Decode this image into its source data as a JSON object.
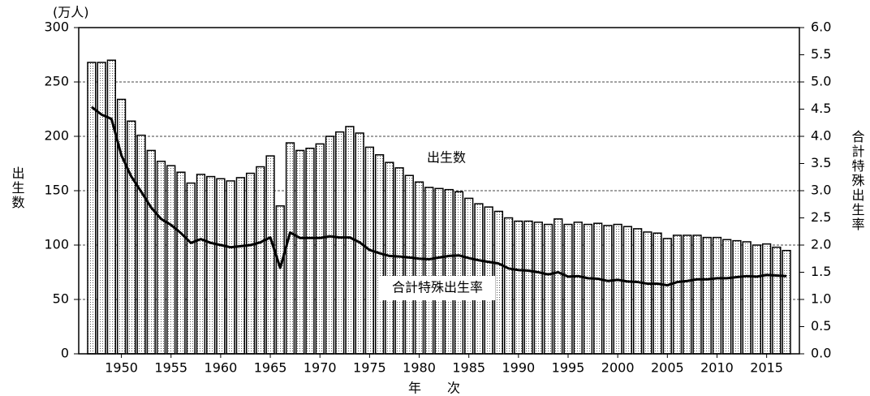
{
  "chart_data": {
    "type": "bar_line",
    "y_unit": "(万人)",
    "y_label": "出生数",
    "y2_label": "合計特殊出生率",
    "x_label": "年　　次",
    "x": [
      1947,
      1948,
      1949,
      1950,
      1951,
      1952,
      1953,
      1954,
      1955,
      1956,
      1957,
      1958,
      1959,
      1960,
      1961,
      1962,
      1963,
      1964,
      1965,
      1966,
      1967,
      1968,
      1969,
      1970,
      1971,
      1972,
      1973,
      1974,
      1975,
      1976,
      1977,
      1978,
      1979,
      1980,
      1981,
      1982,
      1983,
      1984,
      1985,
      1986,
      1987,
      1988,
      1989,
      1990,
      1991,
      1992,
      1993,
      1994,
      1995,
      1996,
      1997,
      1998,
      1999,
      2000,
      2001,
      2002,
      2003,
      2004,
      2005,
      2006,
      2007,
      2008,
      2009,
      2010,
      2011,
      2012,
      2013,
      2014,
      2015,
      2016,
      2017
    ],
    "series": [
      {
        "name": "出生数",
        "color": "#000000",
        "values": [
          268,
          268,
          270,
          234,
          214,
          201,
          187,
          177,
          173,
          167,
          157,
          165,
          163,
          161,
          159,
          162,
          166,
          172,
          182,
          136,
          194,
          187,
          189,
          193,
          200,
          204,
          209,
          203,
          190,
          183,
          176,
          171,
          164,
          158,
          153,
          152,
          151,
          149,
          143,
          138,
          135,
          131,
          125,
          122,
          122,
          121,
          119,
          124,
          119,
          121,
          119,
          120,
          118,
          119,
          117,
          115,
          112,
          111,
          106,
          109,
          109,
          109,
          107,
          107,
          105,
          104,
          103,
          100,
          101,
          98,
          95
        ]
      },
      {
        "name": "合計特殊出生率",
        "color": "#000000",
        "axis": "y2",
        "values": [
          4.54,
          4.4,
          4.32,
          3.65,
          3.26,
          2.98,
          2.69,
          2.48,
          2.37,
          2.22,
          2.04,
          2.11,
          2.04,
          2.0,
          1.96,
          1.98,
          2.0,
          2.05,
          2.14,
          1.58,
          2.23,
          2.13,
          2.13,
          2.13,
          2.16,
          2.14,
          2.14,
          2.05,
          1.91,
          1.85,
          1.8,
          1.79,
          1.77,
          1.75,
          1.74,
          1.77,
          1.8,
          1.81,
          1.76,
          1.72,
          1.69,
          1.66,
          1.57,
          1.54,
          1.53,
          1.5,
          1.46,
          1.5,
          1.42,
          1.43,
          1.39,
          1.38,
          1.34,
          1.36,
          1.33,
          1.32,
          1.29,
          1.29,
          1.26,
          1.32,
          1.34,
          1.37,
          1.37,
          1.39,
          1.39,
          1.41,
          1.43,
          1.42,
          1.45,
          1.44,
          1.43
        ]
      }
    ],
    "xlim": [
      1945.7,
      2018.3
    ],
    "xticks": [
      1950,
      1955,
      1960,
      1965,
      1970,
      1975,
      1980,
      1985,
      1990,
      1995,
      2000,
      2005,
      2010,
      2015
    ],
    "ylim": [
      0,
      300
    ],
    "yticks": [
      0,
      50,
      100,
      150,
      200,
      250,
      300
    ],
    "y2lim": [
      0,
      6
    ],
    "y2ticks": [
      {
        "value": 0,
        "label": "0.0"
      },
      0.5,
      {
        "value": 1,
        "label": "1.0"
      },
      1.5,
      {
        "value": 2,
        "label": "2.0"
      },
      2.5,
      {
        "value": 3,
        "label": "3.0"
      },
      3.5,
      {
        "value": 4,
        "label": "4.0"
      },
      4.5,
      {
        "value": 5,
        "label": "5.0"
      },
      5.5,
      {
        "value": 6,
        "label": "6.0"
      }
    ],
    "grid": true
  }
}
